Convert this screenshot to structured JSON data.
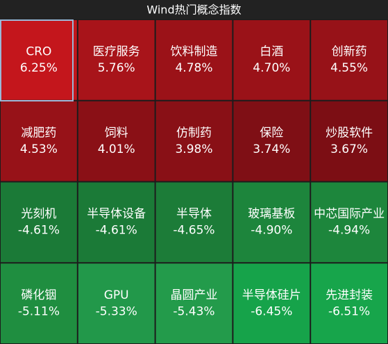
{
  "chart_data": {
    "type": "heatmap",
    "title": "Wind热门概念指数",
    "columns": 5,
    "categories": [
      "CRO",
      "医疗服务",
      "饮料制造",
      "白酒",
      "创新药",
      "减肥药",
      "饲料",
      "仿制药",
      "保险",
      "炒股软件",
      "光刻机",
      "半导体设备",
      "半导体",
      "玻璃基板",
      "中芯国际产业",
      "磷化铟",
      "GPU",
      "晶圆产业",
      "半导体硅片",
      "先进封装"
    ],
    "values": [
      6.25,
      5.76,
      4.78,
      4.7,
      4.55,
      4.53,
      4.01,
      3.98,
      3.74,
      3.67,
      -4.61,
      -4.61,
      -4.65,
      -4.9,
      -4.94,
      -5.11,
      -5.33,
      -5.43,
      -6.45,
      -6.51
    ],
    "value_labels": [
      "6.25%",
      "5.76%",
      "4.78%",
      "4.70%",
      "4.55%",
      "4.53%",
      "4.01%",
      "3.98%",
      "3.74%",
      "3.67%",
      "-4.61%",
      "-4.61%",
      "-4.65%",
      "-4.90%",
      "-4.94%",
      "-5.11%",
      "-5.33%",
      "-5.43%",
      "-6.45%",
      "-6.51%"
    ],
    "colors": [
      "#c4161c",
      "#a8141a",
      "#9b1218",
      "#9a1218",
      "#971218",
      "#971218",
      "#8a1016",
      "#891016",
      "#7f0f15",
      "#7c0e14",
      "#1b7a37",
      "#1b7a37",
      "#1c7c38",
      "#1d853c",
      "#1d863c",
      "#1f8e40",
      "#22984a",
      "#239b4b",
      "#16a34a",
      "#17a54b"
    ]
  }
}
